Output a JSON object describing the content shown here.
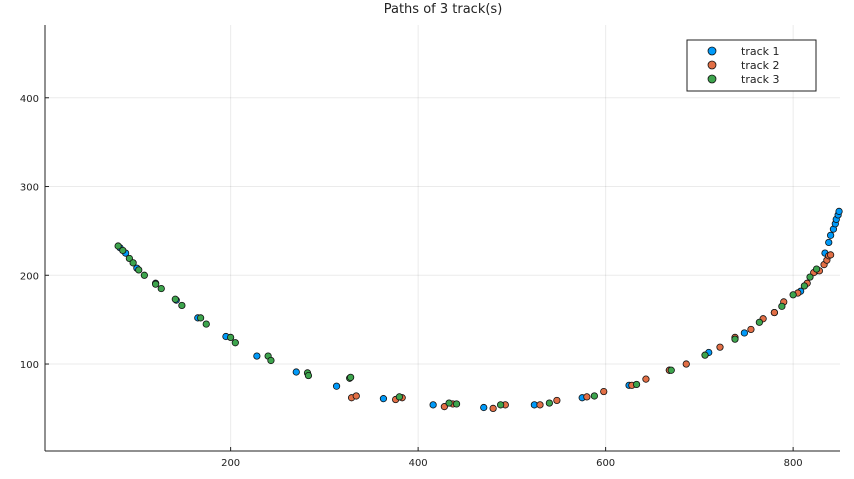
{
  "chart_data": {
    "type": "scatter",
    "title": "Paths of 3 track(s)",
    "xlabel": "",
    "ylabel": "",
    "xlim": [
      2,
      850
    ],
    "ylim": [
      2,
      482
    ],
    "xticks": [
      200,
      400,
      600,
      800
    ],
    "yticks": [
      100,
      200,
      300,
      400
    ],
    "grid": true,
    "legend_position": "top-right",
    "series": [
      {
        "name": "track 1",
        "color": "#009af9",
        "points": [
          [
            82,
            231
          ],
          [
            88,
            225
          ],
          [
            100,
            208
          ],
          [
            120,
            191
          ],
          [
            142,
            172
          ],
          [
            165,
            152
          ],
          [
            195,
            131
          ],
          [
            228,
            109
          ],
          [
            270,
            91
          ],
          [
            313,
            75
          ],
          [
            363,
            61
          ],
          [
            416,
            54
          ],
          [
            470,
            51
          ],
          [
            524,
            54
          ],
          [
            575,
            62
          ],
          [
            625,
            76
          ],
          [
            668,
            93
          ],
          [
            710,
            113
          ],
          [
            748,
            135
          ],
          [
            780,
            158
          ],
          [
            808,
            182
          ],
          [
            825,
            205
          ],
          [
            834,
            225
          ],
          [
            838,
            237
          ],
          [
            840,
            245
          ],
          [
            843,
            252
          ],
          [
            845,
            258
          ],
          [
            846,
            263
          ],
          [
            848,
            268
          ],
          [
            849,
            272
          ]
        ]
      },
      {
        "name": "track 2",
        "color": "#e26f46",
        "points": [
          [
            329,
            62
          ],
          [
            334,
            64
          ],
          [
            376,
            60
          ],
          [
            383,
            62
          ],
          [
            428,
            52
          ],
          [
            437,
            55
          ],
          [
            480,
            50
          ],
          [
            493,
            54
          ],
          [
            530,
            54
          ],
          [
            548,
            59
          ],
          [
            580,
            63
          ],
          [
            598,
            69
          ],
          [
            628,
            76
          ],
          [
            643,
            83
          ],
          [
            668,
            93
          ],
          [
            686,
            100
          ],
          [
            722,
            119
          ],
          [
            738,
            130
          ],
          [
            755,
            139
          ],
          [
            768,
            151
          ],
          [
            780,
            158
          ],
          [
            790,
            170
          ],
          [
            805,
            180
          ],
          [
            815,
            191
          ],
          [
            822,
            203
          ],
          [
            828,
            205
          ],
          [
            833,
            212
          ],
          [
            836,
            217
          ],
          [
            838,
            222
          ],
          [
            840,
            223
          ]
        ]
      },
      {
        "name": "track 3",
        "color": "#3da44d",
        "points": [
          [
            80,
            233
          ],
          [
            85,
            228
          ],
          [
            92,
            219
          ],
          [
            96,
            214
          ],
          [
            102,
            206
          ],
          [
            108,
            200
          ],
          [
            120,
            190
          ],
          [
            126,
            185
          ],
          [
            141,
            173
          ],
          [
            148,
            166
          ],
          [
            168,
            152
          ],
          [
            174,
            145
          ],
          [
            200,
            130
          ],
          [
            205,
            124
          ],
          [
            240,
            109
          ],
          [
            243,
            104
          ],
          [
            282,
            90
          ],
          [
            283,
            87
          ],
          [
            327,
            84
          ],
          [
            328,
            85
          ],
          [
            380,
            63
          ],
          [
            433,
            56
          ],
          [
            441,
            55
          ],
          [
            488,
            54
          ],
          [
            540,
            56
          ],
          [
            588,
            64
          ],
          [
            633,
            77
          ],
          [
            670,
            93
          ],
          [
            706,
            110
          ],
          [
            738,
            128
          ],
          [
            764,
            147
          ],
          [
            788,
            165
          ],
          [
            800,
            178
          ],
          [
            812,
            188
          ],
          [
            818,
            198
          ],
          [
            825,
            207
          ]
        ]
      }
    ]
  }
}
